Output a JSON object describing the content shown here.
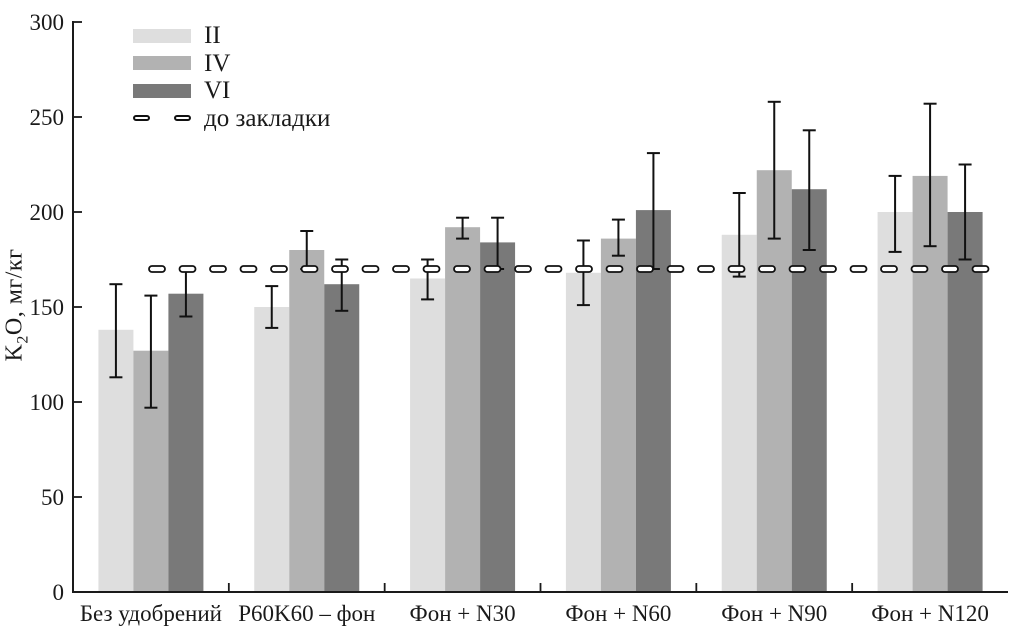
{
  "figure": {
    "background": "#ffffff",
    "axis_color": "#1a1a1a",
    "error_bar_color": "#111111"
  },
  "chart_data": {
    "type": "bar",
    "title": "",
    "xlabel": "",
    "ylabel": "K2O, мг/кг",
    "ylabel_parts": {
      "base": "K",
      "sub": "2",
      "rest": "O, мг/кг"
    },
    "ylim": [
      0,
      300
    ],
    "yticks": [
      0,
      50,
      100,
      150,
      200,
      250,
      300
    ],
    "grid": false,
    "legend_position": "top-left",
    "categories": [
      "Без удобрений",
      "P60K60 – фон",
      "Фон + N30",
      "Фон + N60",
      "Фон + N90",
      "Фон + N120"
    ],
    "series": [
      {
        "name": "II",
        "color": "#dedede",
        "values": [
          138,
          150,
          165,
          168,
          188,
          200
        ],
        "err_low": [
          113,
          139,
          154,
          151,
          166,
          179
        ],
        "err_high": [
          162,
          161,
          175,
          185,
          210,
          219
        ]
      },
      {
        "name": "IV",
        "color": "#b2b2b2",
        "values": [
          127,
          180,
          192,
          186,
          222,
          219
        ],
        "err_low": [
          97,
          170,
          186,
          177,
          186,
          182
        ],
        "err_high": [
          156,
          190,
          197,
          196,
          258,
          257
        ]
      },
      {
        "name": "VI",
        "color": "#797979",
        "values": [
          157,
          162,
          184,
          201,
          212,
          200
        ],
        "err_low": [
          145,
          148,
          170,
          170,
          180,
          175
        ],
        "err_high": [
          170,
          175,
          197,
          231,
          243,
          225
        ]
      }
    ],
    "baseline": {
      "label": "до закладки",
      "value": 170,
      "style": "dashed"
    }
  }
}
